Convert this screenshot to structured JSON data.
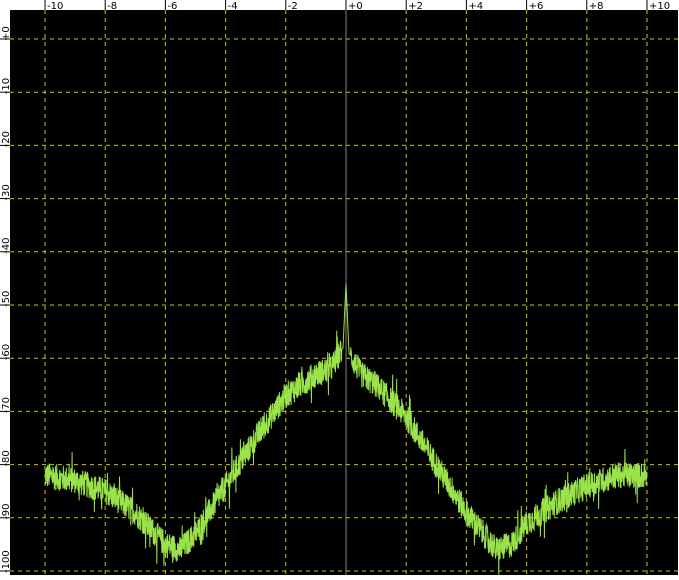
{
  "chart_data": {
    "type": "line",
    "title": "",
    "xlabel": "",
    "ylabel": "",
    "xlim": [
      -10,
      10
    ],
    "ylim": [
      0,
      -100
    ],
    "grid": true,
    "colors": {
      "background": "#000000",
      "frame": "#ffffff",
      "grid": "#c8c800",
      "axis_line": "#808080",
      "trace": "#9be34a"
    },
    "x_ticks": [
      {
        "value": -10,
        "label": "-10"
      },
      {
        "value": -8,
        "label": "-8"
      },
      {
        "value": -6,
        "label": "-6"
      },
      {
        "value": -4,
        "label": "-4"
      },
      {
        "value": -2,
        "label": "-2"
      },
      {
        "value": 0,
        "label": "+0"
      },
      {
        "value": 2,
        "label": "+2"
      },
      {
        "value": 4,
        "label": "+4"
      },
      {
        "value": 6,
        "label": "+6"
      },
      {
        "value": 8,
        "label": "+8"
      },
      {
        "value": 10,
        "label": "+10"
      }
    ],
    "y_ticks": [
      {
        "value": 0,
        "label": "+0"
      },
      {
        "value": -10,
        "label": "-10"
      },
      {
        "value": -20,
        "label": "-20"
      },
      {
        "value": -30,
        "label": "-30"
      },
      {
        "value": -40,
        "label": "-40"
      },
      {
        "value": -50,
        "label": "-50"
      },
      {
        "value": -60,
        "label": "-60"
      },
      {
        "value": -70,
        "label": "-70"
      },
      {
        "value": -80,
        "label": "-80"
      },
      {
        "value": -90,
        "label": "-90"
      },
      {
        "value": -100,
        "label": "-100"
      }
    ],
    "series": [
      {
        "x": [
          -10,
          -9,
          -8,
          -7,
          -6,
          -5.5,
          -5,
          -4,
          -3,
          -2,
          -1,
          -0.5,
          -0.1,
          0,
          0.1,
          0.5,
          1,
          2,
          3,
          4,
          5,
          5.5,
          6,
          7,
          8,
          9,
          10
        ],
        "y": [
          -82,
          -83,
          -85,
          -89,
          -95,
          -96,
          -93,
          -84,
          -75,
          -67,
          -63,
          -62,
          -58,
          -46,
          -59,
          -63,
          -65,
          -71,
          -80,
          -89,
          -96,
          -95,
          -91,
          -87,
          -84,
          -82,
          -82
        ],
        "noise": 2.5
      }
    ]
  }
}
